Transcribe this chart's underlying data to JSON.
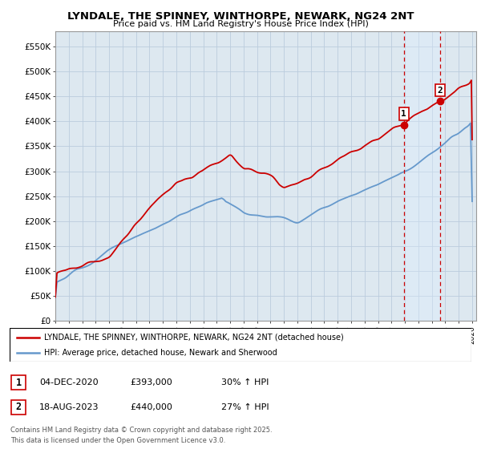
{
  "title": "LYNDALE, THE SPINNEY, WINTHORPE, NEWARK, NG24 2NT",
  "subtitle": "Price paid vs. HM Land Registry's House Price Index (HPI)",
  "ylabel_ticks": [
    "£0",
    "£50K",
    "£100K",
    "£150K",
    "£200K",
    "£250K",
    "£300K",
    "£350K",
    "£400K",
    "£450K",
    "£500K",
    "£550K"
  ],
  "ytick_values": [
    0,
    50000,
    100000,
    150000,
    200000,
    250000,
    300000,
    350000,
    400000,
    450000,
    500000,
    550000
  ],
  "ylim": [
    0,
    580000
  ],
  "xlim_start": 1995.0,
  "xlim_end": 2026.3,
  "legend_line1": "LYNDALE, THE SPINNEY, WINTHORPE, NEWARK, NG24 2NT (detached house)",
  "legend_line2": "HPI: Average price, detached house, Newark and Sherwood",
  "sale1_label": "1",
  "sale1_date": "04-DEC-2020",
  "sale1_price": "£393,000",
  "sale1_hpi": "30% ↑ HPI",
  "sale1_x": 2020.92,
  "sale1_y": 393000,
  "sale2_label": "2",
  "sale2_date": "18-AUG-2023",
  "sale2_price": "£440,000",
  "sale2_hpi": "27% ↑ HPI",
  "sale2_x": 2023.62,
  "sale2_y": 440000,
  "red_color": "#cc0000",
  "blue_color": "#6699cc",
  "shade_color": "#ddeeff",
  "vline_color": "#cc0000",
  "background_color": "#ffffff",
  "plot_bg_color": "#dde8f0",
  "grid_color": "#bbccdd",
  "copyright_text": "Contains HM Land Registry data © Crown copyright and database right 2025.\nThis data is licensed under the Open Government Licence v3.0."
}
